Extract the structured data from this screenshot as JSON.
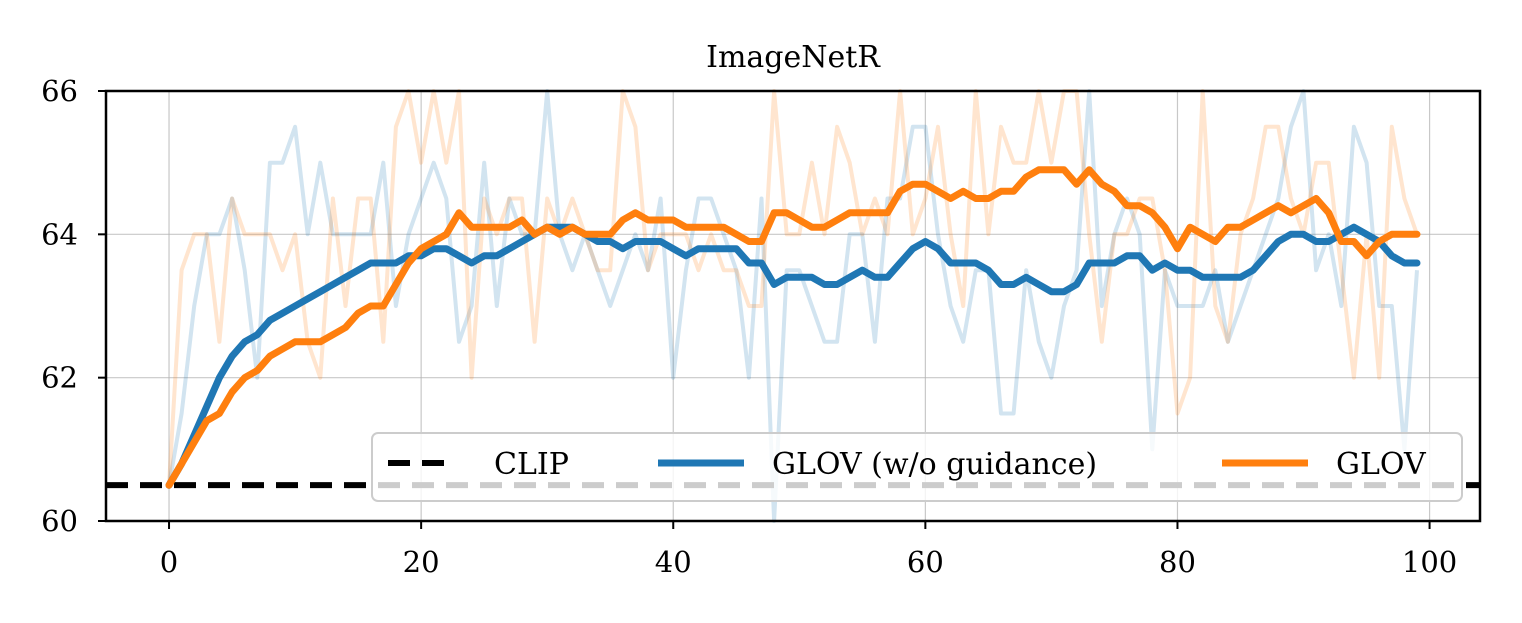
{
  "chart_data": {
    "type": "line",
    "title": "ImageNetR",
    "xlabel": "",
    "ylabel": "",
    "xlim": [
      -5,
      104
    ],
    "ylim": [
      60,
      66
    ],
    "xticks": [
      0,
      20,
      40,
      60,
      80,
      100
    ],
    "yticks": [
      60,
      62,
      64,
      66
    ],
    "grid": true,
    "legend_position": "lower-right",
    "baseline": {
      "name": "CLIP",
      "value": 60.5,
      "color": "#000000",
      "style": "dashed"
    },
    "series": [
      {
        "name": "GLOV (w/o guidance)",
        "color": "#1f77b4",
        "raw_values": [
          60.5,
          61.5,
          63.0,
          64.0,
          64.0,
          64.5,
          63.5,
          62.0,
          65.0,
          65.0,
          65.5,
          64.0,
          65.0,
          64.0,
          64.0,
          64.0,
          64.0,
          65.0,
          63.0,
          64.0,
          64.5,
          65.0,
          64.5,
          62.5,
          63.0,
          65.0,
          63.0,
          64.5,
          64.0,
          64.0,
          66.0,
          64.0,
          63.5,
          64.0,
          63.5,
          63.0,
          63.5,
          64.0,
          63.5,
          64.5,
          62.0,
          63.5,
          64.5,
          64.5,
          64.0,
          63.5,
          62.0,
          64.5,
          60.0,
          63.5,
          63.5,
          63.0,
          62.5,
          62.5,
          64.0,
          64.0,
          62.5,
          64.5,
          64.5,
          65.5,
          65.5,
          64.0,
          63.0,
          62.5,
          63.5,
          63.5,
          61.5,
          61.5,
          63.5,
          62.5,
          62.0,
          63.0,
          63.5,
          66.0,
          63.0,
          64.0,
          64.5,
          64.0,
          61.0,
          63.5,
          63.0,
          63.0,
          63.0,
          63.5,
          62.5,
          63.0,
          63.5,
          64.0,
          64.5,
          65.5,
          66.0,
          63.5,
          64.0,
          63.0,
          65.5,
          65.0,
          63.0,
          63.0,
          61.0,
          63.5
        ],
        "smoothed_values": [
          60.5,
          60.8,
          61.2,
          61.6,
          62.0,
          62.3,
          62.5,
          62.6,
          62.8,
          62.9,
          63.0,
          63.1,
          63.2,
          63.3,
          63.4,
          63.5,
          63.6,
          63.6,
          63.6,
          63.7,
          63.7,
          63.8,
          63.8,
          63.7,
          63.6,
          63.7,
          63.7,
          63.8,
          63.9,
          64.0,
          64.1,
          64.1,
          64.1,
          64.0,
          63.9,
          63.9,
          63.8,
          63.9,
          63.9,
          63.9,
          63.8,
          63.7,
          63.8,
          63.8,
          63.8,
          63.8,
          63.6,
          63.6,
          63.3,
          63.4,
          63.4,
          63.4,
          63.3,
          63.3,
          63.4,
          63.5,
          63.4,
          63.4,
          63.6,
          63.8,
          63.9,
          63.8,
          63.6,
          63.6,
          63.6,
          63.5,
          63.3,
          63.3,
          63.4,
          63.3,
          63.2,
          63.2,
          63.3,
          63.6,
          63.6,
          63.6,
          63.7,
          63.7,
          63.5,
          63.6,
          63.5,
          63.5,
          63.4,
          63.4,
          63.4,
          63.4,
          63.5,
          63.7,
          63.9,
          64.0,
          64.0,
          63.9,
          63.9,
          64.0,
          64.1,
          64.0,
          63.9,
          63.7,
          63.6,
          63.6
        ]
      },
      {
        "name": "GLOV",
        "color": "#ff7f0e",
        "raw_values": [
          60.5,
          63.5,
          64.0,
          64.0,
          62.5,
          64.5,
          64.0,
          64.0,
          64.0,
          63.5,
          64.0,
          62.5,
          62.0,
          64.5,
          63.0,
          64.5,
          64.5,
          62.5,
          65.5,
          66.0,
          65.0,
          66.0,
          65.0,
          66.0,
          62.0,
          64.5,
          64.0,
          64.5,
          64.5,
          62.5,
          64.5,
          64.0,
          64.5,
          64.0,
          63.5,
          63.5,
          66.0,
          65.5,
          63.5,
          64.0,
          64.0,
          64.0,
          63.5,
          64.0,
          63.5,
          63.5,
          63.0,
          63.0,
          66.0,
          64.0,
          64.0,
          65.0,
          64.0,
          65.5,
          65.0,
          64.0,
          64.5,
          64.0,
          66.0,
          64.0,
          64.5,
          65.5,
          64.0,
          63.0,
          66.0,
          64.0,
          65.5,
          65.0,
          65.0,
          66.0,
          65.0,
          66.0,
          66.0,
          64.0,
          62.5,
          64.0,
          64.0,
          64.5,
          64.5,
          63.5,
          61.5,
          62.0,
          66.0,
          63.0,
          62.5,
          64.0,
          64.5,
          65.5,
          65.5,
          64.5,
          64.0,
          65.0,
          65.0,
          63.5,
          62.0,
          64.0,
          62.0,
          65.5,
          64.5,
          64.0
        ],
        "smoothed_values": [
          60.5,
          60.8,
          61.1,
          61.4,
          61.5,
          61.8,
          62.0,
          62.1,
          62.3,
          62.4,
          62.5,
          62.5,
          62.5,
          62.6,
          62.7,
          62.9,
          63.0,
          63.0,
          63.3,
          63.6,
          63.8,
          63.9,
          64.0,
          64.3,
          64.1,
          64.1,
          64.1,
          64.1,
          64.2,
          64.0,
          64.1,
          64.0,
          64.1,
          64.0,
          64.0,
          64.0,
          64.2,
          64.3,
          64.2,
          64.2,
          64.2,
          64.1,
          64.1,
          64.1,
          64.1,
          64.0,
          63.9,
          63.9,
          64.3,
          64.3,
          64.2,
          64.1,
          64.1,
          64.2,
          64.3,
          64.3,
          64.3,
          64.3,
          64.6,
          64.7,
          64.7,
          64.6,
          64.5,
          64.6,
          64.5,
          64.5,
          64.6,
          64.6,
          64.8,
          64.9,
          64.9,
          64.9,
          64.7,
          64.9,
          64.7,
          64.6,
          64.4,
          64.4,
          64.3,
          64.1,
          63.8,
          64.1,
          64.0,
          63.9,
          64.1,
          64.1,
          64.2,
          64.3,
          64.4,
          64.3,
          64.4,
          64.5,
          64.3,
          63.9,
          63.9,
          63.7,
          63.9,
          64.0,
          64.0,
          64.0
        ]
      }
    ]
  }
}
